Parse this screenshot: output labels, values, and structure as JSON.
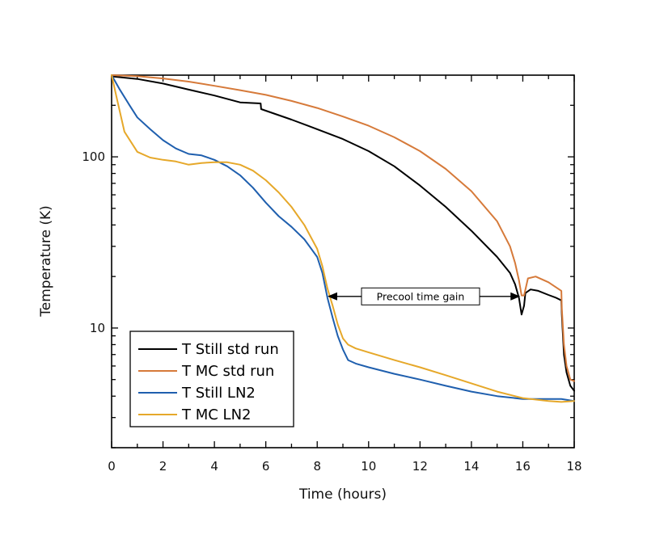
{
  "chart_data": {
    "type": "line",
    "xlabel": "Time (hours)",
    "ylabel": "Temperature (K)",
    "xlim": [
      0,
      18
    ],
    "ylim": [
      2,
      300
    ],
    "yscale": "log",
    "grid": false,
    "legend_position": "bottom-left",
    "x_ticks": [
      0,
      2,
      4,
      6,
      8,
      10,
      12,
      14,
      16,
      18
    ],
    "y_ticks": [
      10,
      100
    ],
    "annotation": {
      "text": "Precool time gain",
      "from_x": 8.4,
      "to_x": 15.9,
      "y": 15.3
    },
    "series": [
      {
        "name": "T Still std run",
        "color": "#000000",
        "points": [
          [
            0,
            295
          ],
          [
            1,
            285
          ],
          [
            2,
            268
          ],
          [
            3,
            247
          ],
          [
            4,
            228
          ],
          [
            5,
            208
          ],
          [
            5.8,
            205
          ],
          [
            5.82,
            190
          ],
          [
            7,
            165
          ],
          [
            8,
            145
          ],
          [
            9,
            127
          ],
          [
            10,
            108
          ],
          [
            11,
            88
          ],
          [
            12,
            68
          ],
          [
            13,
            51
          ],
          [
            14,
            37
          ],
          [
            15,
            26
          ],
          [
            15.5,
            21
          ],
          [
            15.7,
            18
          ],
          [
            15.85,
            15
          ],
          [
            15.95,
            12
          ],
          [
            16.05,
            13.5
          ],
          [
            16.1,
            16
          ],
          [
            16.3,
            16.8
          ],
          [
            16.6,
            16.5
          ],
          [
            17,
            15.6
          ],
          [
            17.3,
            15
          ],
          [
            17.5,
            14.5
          ],
          [
            17.52,
            12
          ],
          [
            17.6,
            7
          ],
          [
            17.7,
            5.5
          ],
          [
            17.85,
            4.6
          ],
          [
            18,
            4.3
          ]
        ]
      },
      {
        "name": "T MC std run",
        "color": "#d67a3a",
        "points": [
          [
            0,
            300
          ],
          [
            1,
            296
          ],
          [
            2,
            287
          ],
          [
            3,
            275
          ],
          [
            4,
            260
          ],
          [
            5,
            245
          ],
          [
            6,
            230
          ],
          [
            7,
            212
          ],
          [
            8,
            193
          ],
          [
            9,
            172
          ],
          [
            10,
            152
          ],
          [
            11,
            130
          ],
          [
            12,
            108
          ],
          [
            13,
            85
          ],
          [
            14,
            63
          ],
          [
            15,
            42
          ],
          [
            15.5,
            30
          ],
          [
            15.7,
            24
          ],
          [
            15.85,
            19
          ],
          [
            15.95,
            15.5
          ],
          [
            16.05,
            15.5
          ],
          [
            16.2,
            19.5
          ],
          [
            16.5,
            20
          ],
          [
            17,
            18.5
          ],
          [
            17.5,
            16.5
          ],
          [
            17.52,
            13
          ],
          [
            17.6,
            8
          ],
          [
            17.7,
            6
          ],
          [
            17.85,
            5
          ],
          [
            18,
            4.9
          ]
        ]
      },
      {
        "name": "T Still LN2",
        "color": "#1f5fae",
        "points": [
          [
            0,
            300
          ],
          [
            0.3,
            250
          ],
          [
            0.7,
            200
          ],
          [
            1,
            170
          ],
          [
            1.5,
            145
          ],
          [
            2,
            125
          ],
          [
            2.5,
            112
          ],
          [
            3,
            104
          ],
          [
            3.5,
            102
          ],
          [
            4,
            96
          ],
          [
            4.5,
            88
          ],
          [
            5,
            78
          ],
          [
            5.5,
            66
          ],
          [
            6,
            54
          ],
          [
            6.5,
            45
          ],
          [
            7,
            39
          ],
          [
            7.5,
            33
          ],
          [
            8,
            26
          ],
          [
            8.2,
            21
          ],
          [
            8.4,
            15
          ],
          [
            8.6,
            11.5
          ],
          [
            8.8,
            9
          ],
          [
            9,
            7.5
          ],
          [
            9.2,
            6.5
          ],
          [
            9.5,
            6.2
          ],
          [
            10,
            5.9
          ],
          [
            11,
            5.4
          ],
          [
            12,
            5
          ],
          [
            13,
            4.6
          ],
          [
            14,
            4.25
          ],
          [
            15,
            4
          ],
          [
            16,
            3.85
          ],
          [
            17,
            3.85
          ],
          [
            17.5,
            3.85
          ],
          [
            18,
            3.75
          ]
        ]
      },
      {
        "name": "T MC LN2",
        "color": "#e6a82a",
        "points": [
          [
            0,
            300
          ],
          [
            0.2,
            220
          ],
          [
            0.5,
            140
          ],
          [
            1,
            107
          ],
          [
            1.5,
            99
          ],
          [
            2,
            96
          ],
          [
            2.5,
            94
          ],
          [
            3,
            90
          ],
          [
            3.5,
            92
          ],
          [
            4,
            93
          ],
          [
            4.5,
            93
          ],
          [
            5,
            90
          ],
          [
            5.5,
            83
          ],
          [
            6,
            73
          ],
          [
            6.5,
            62
          ],
          [
            7,
            51
          ],
          [
            7.5,
            40
          ],
          [
            8,
            29
          ],
          [
            8.2,
            23
          ],
          [
            8.4,
            17
          ],
          [
            8.6,
            13.5
          ],
          [
            8.8,
            10.5
          ],
          [
            9,
            8.7
          ],
          [
            9.2,
            8
          ],
          [
            9.5,
            7.6
          ],
          [
            10,
            7.2
          ],
          [
            11,
            6.5
          ],
          [
            12,
            5.9
          ],
          [
            13,
            5.3
          ],
          [
            14,
            4.75
          ],
          [
            15,
            4.25
          ],
          [
            16,
            3.9
          ],
          [
            17,
            3.75
          ],
          [
            17.5,
            3.7
          ],
          [
            18,
            3.75
          ]
        ]
      }
    ]
  }
}
